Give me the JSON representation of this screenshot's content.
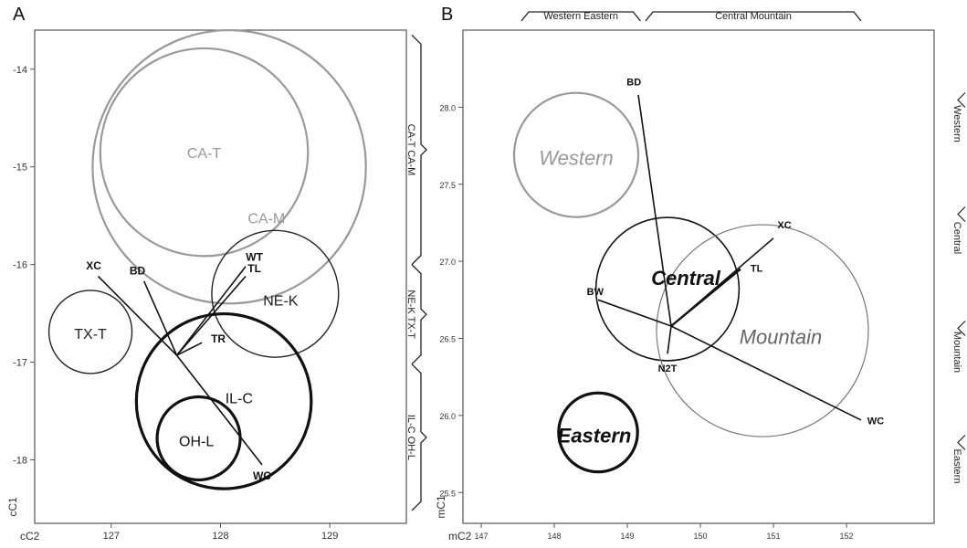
{
  "chart_data": [
    {
      "panel_letter": "A",
      "type": "scatter",
      "xlabel": "cC2",
      "ylabel": "cC1",
      "xlim": [
        126.3,
        129.7
      ],
      "ylim": [
        -18.65,
        -13.6
      ],
      "xticks": [
        127,
        128,
        129
      ],
      "yticks": [
        -14,
        -15,
        -16,
        -17,
        -18
      ],
      "grid": false,
      "circles": [
        {
          "label": "CA-T",
          "cx": 127.85,
          "cy": -14.85,
          "r": 0.95,
          "color": "#999999",
          "text_color": "#999999",
          "stroke_width": 2.2,
          "font_size": 16
        },
        {
          "label": "CA-M",
          "cx": 128.08,
          "cy": -15.0,
          "r": 1.25,
          "color": "#999999",
          "text_color": "#999999",
          "stroke_width": 2.2,
          "font_size": 16
        },
        {
          "label": "NE-K",
          "cx": 128.5,
          "cy": -16.3,
          "r": 0.58,
          "color": "#222222",
          "text_color": "#222222",
          "stroke_width": 1.4,
          "font_size": 16
        },
        {
          "label": "TX-T",
          "cx": 126.81,
          "cy": -16.69,
          "r": 0.38,
          "color": "#222222",
          "text_color": "#222222",
          "stroke_width": 1.4,
          "font_size": 16
        },
        {
          "label": "IL-C",
          "cx": 128.03,
          "cy": -17.4,
          "r": 0.8,
          "color": "#111111",
          "text_color": "#111111",
          "stroke_width": 3.2,
          "font_size": 16
        },
        {
          "label": "OH-L",
          "cx": 127.8,
          "cy": -17.78,
          "r": 0.38,
          "color": "#111111",
          "text_color": "#111111",
          "stroke_width": 3.2,
          "font_size": 16
        }
      ],
      "circle_label_pos": {
        "CA-T": [
          127.85,
          -14.87
        ],
        "CA-M": [
          128.42,
          -15.54
        ],
        "NE-K": [
          128.55,
          -16.38
        ],
        "TX-T": [
          126.81,
          -16.72
        ],
        "IL-C": [
          128.17,
          -17.38
        ],
        "OH-L": [
          127.78,
          -17.82
        ]
      },
      "center": [
        127.6,
        -16.93
      ],
      "vectors": [
        {
          "label": "XC",
          "x": 126.88,
          "y": -16.12,
          "label_pos": [
            126.84,
            -16.02
          ]
        },
        {
          "label": "BD",
          "x": 127.3,
          "y": -16.17,
          "label_pos": [
            127.24,
            -16.07
          ]
        },
        {
          "label": "WT",
          "x": 128.23,
          "y": -16.02,
          "label_pos": [
            128.31,
            -15.93
          ]
        },
        {
          "label": "TL",
          "x": 128.23,
          "y": -16.12,
          "label_pos": [
            128.31,
            -16.05
          ]
        },
        {
          "label": "TR",
          "x": 127.83,
          "y": -16.8,
          "label_pos": [
            127.98,
            -16.77
          ]
        },
        {
          "label": "WC",
          "x": 128.38,
          "y": -18.05,
          "label_pos": [
            128.38,
            -18.17
          ]
        }
      ],
      "braces": {
        "side": "right",
        "groups": [
          {
            "label": "CA-T   CA-M",
            "from": -13.65,
            "to": -16.0
          },
          {
            "label": "NE-K  TX-T",
            "from": -16.0,
            "to": -17.02
          },
          {
            "label": "IL-C   OH-L",
            "from": -17.02,
            "to": -18.52
          }
        ]
      }
    },
    {
      "panel_letter": "B",
      "type": "scatter",
      "xlabel": "mC2",
      "ylabel": "mC1",
      "xlim": [
        146.75,
        153.2
      ],
      "ylim": [
        25.3,
        28.5
      ],
      "xticks": [
        147,
        148,
        149,
        150,
        151,
        152
      ],
      "yticks": [
        25.5,
        26.0,
        26.5,
        27.0,
        27.5,
        28.0
      ],
      "grid": false,
      "circles": [
        {
          "label": "Western",
          "cx": 148.3,
          "cy": 27.69,
          "r": 0.85,
          "color": "#999999",
          "text_color": "#999999",
          "stroke_width": 2.2,
          "font_size": 22
        },
        {
          "label": "Central",
          "cx": 149.55,
          "cy": 26.82,
          "r": 0.98,
          "color": "#111111",
          "text_color": "#111111",
          "stroke_width": 1.6,
          "font_size": 22
        },
        {
          "label": "Mountain",
          "cx": 150.85,
          "cy": 26.55,
          "r": 1.45,
          "color": "#777777",
          "text_color": "#666666",
          "stroke_width": 1.2,
          "font_size": 22
        },
        {
          "label": "Eastern",
          "cx": 148.6,
          "cy": 25.89,
          "r": 0.54,
          "color": "#111111",
          "text_color": "#111111",
          "stroke_width": 3.2,
          "font_size": 22
        }
      ],
      "circle_label_pos": {
        "Western": [
          148.3,
          27.66
        ],
        "Central": [
          149.8,
          26.88
        ],
        "Mountain": [
          151.1,
          26.5
        ],
        "Eastern": [
          148.55,
          25.86
        ]
      },
      "center": [
        149.6,
        26.58
      ],
      "vectors": [
        {
          "label": "BD",
          "x": 149.15,
          "y": 28.08,
          "label_pos": [
            149.09,
            28.16
          ]
        },
        {
          "label": "XC",
          "x": 151.0,
          "y": 27.15,
          "label_pos": [
            151.15,
            27.23
          ]
        },
        {
          "label": "TL",
          "x": 150.55,
          "y": 26.95,
          "label_pos": [
            150.77,
            26.95
          ]
        },
        {
          "label": "BW",
          "x": 148.6,
          "y": 26.75,
          "label_pos": [
            148.56,
            26.8
          ]
        },
        {
          "label": "N2T",
          "x": 149.55,
          "y": 26.4,
          "label_pos": [
            149.55,
            26.3
          ]
        },
        {
          "label": "WC",
          "x": 152.2,
          "y": 25.97,
          "label_pos": [
            152.4,
            25.96
          ]
        }
      ],
      "braces_top": [
        {
          "label": "Western  Eastern",
          "from": 147.55,
          "to": 149.18
        },
        {
          "label": "Central          Mountain",
          "from": 149.25,
          "to": 152.2
        }
      ],
      "braces_right_labels": [
        "Western",
        "Central",
        "Mountain",
        "Eastern"
      ]
    }
  ]
}
